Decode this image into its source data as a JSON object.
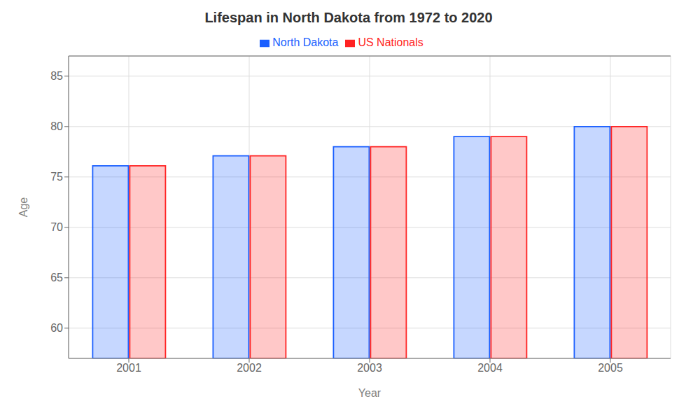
{
  "chart_data": {
    "type": "bar",
    "title": "Lifespan in North Dakota from 1972 to 2020",
    "x_label": "Year",
    "y_label": "Age",
    "categories": [
      "2001",
      "2002",
      "2003",
      "2004",
      "2005"
    ],
    "series": [
      {
        "name": "North Dakota",
        "color": "#1A5FFF",
        "values": [
          76.1,
          77.1,
          78.0,
          79.0,
          80.0
        ]
      },
      {
        "name": "US Nationals",
        "color": "#FF2222",
        "values": [
          76.1,
          77.1,
          78.0,
          79.0,
          80.0
        ]
      }
    ],
    "ylim": [
      57,
      87
    ],
    "yticks": [
      60,
      65,
      70,
      75,
      80,
      85
    ],
    "grid": true,
    "legend": "top"
  }
}
